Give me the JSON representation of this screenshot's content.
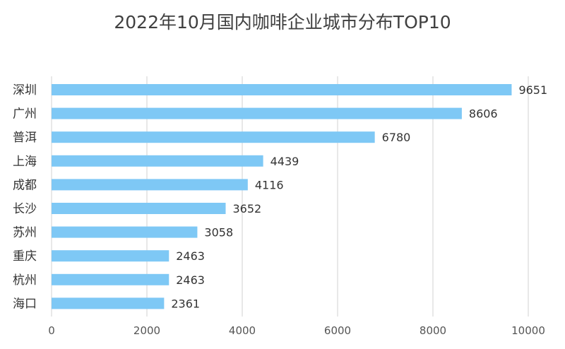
{
  "chart_data": {
    "type": "bar",
    "orientation": "horizontal",
    "title": "2022年10月国内咖啡企业城市分布TOP10",
    "categories": [
      "深圳",
      "广州",
      "普洱",
      "上海",
      "成都",
      "长沙",
      "苏州",
      "重庆",
      "杭州",
      "海口"
    ],
    "values": [
      9651,
      8606,
      6780,
      4439,
      4116,
      3652,
      3058,
      2463,
      2463,
      2361
    ],
    "xlim": [
      0,
      10000
    ],
    "x_ticks": [
      "0",
      "2000",
      "4000",
      "6000",
      "8000",
      "10000"
    ],
    "grid": "vertical",
    "data_labels": true,
    "bar_color": "#7ec8f5",
    "grid_color": "#d9d9d9"
  }
}
